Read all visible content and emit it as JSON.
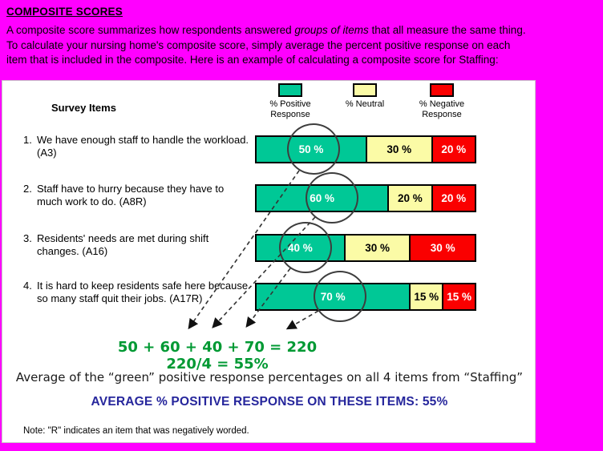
{
  "page": {
    "background_color": "#FF00FF"
  },
  "header": {
    "title": "COMPOSITE SCORES",
    "line1_pre": "A composite score summarizes how respondents answered ",
    "line1_italic": "groups of items",
    "line1_post": " that all measure the same thing.",
    "line2": "To calculate your nursing home's composite score, simply average the percent positive response on each",
    "line3": "item that is included in the composite. Here is an example of calculating a composite score for Staffing:"
  },
  "panel": {
    "survey_items_label": "Survey Items",
    "legend": {
      "items": [
        {
          "name": "positive",
          "color": "#00C896",
          "label1": "% Positive",
          "label2": "Response"
        },
        {
          "name": "neutral",
          "color": "#FBFBA6",
          "label1": "% Neutral",
          "label2": ""
        },
        {
          "name": "negative",
          "color": "#FA0000",
          "label1": "% Negative",
          "label2": "Response"
        }
      ]
    },
    "items": [
      {
        "number": "1.",
        "text": "We have enough staff to handle the workload. (A3)"
      },
      {
        "number": "2.",
        "text": "Staff have to hurry because they have to much work to do. (A8R)"
      },
      {
        "number": "3.",
        "text": "Residents' needs are met during shift changes. (A16)"
      },
      {
        "number": "4.",
        "text": "It is hard to keep residents safe here because so many staff quit their jobs. (A17R)"
      }
    ],
    "calc": {
      "line1": "50 + 60 + 40 + 70 = 220",
      "line2": "220/4 = 55%",
      "color": "#009933"
    },
    "average_note": "Average of the “green” positive response percentages on all 4 items from “Staffing”",
    "average_line": "AVERAGE % POSITIVE RESPONSE ON THESE ITEMS: 55%",
    "average_line_color": "#26269C",
    "footnote": "Note: \"R\" indicates an item that was negatively worded."
  },
  "chart_data": {
    "type": "bar",
    "stacked": true,
    "orientation": "horizontal",
    "unit": "percent",
    "xlim": [
      0,
      100
    ],
    "legend_position": "top",
    "categories": [
      "We have enough staff to handle the workload. (A3)",
      "Staff have to hurry because they have to much work to do. (A8R)",
      "Residents' needs are met during shift changes. (A16)",
      "It is hard to keep residents safe here because so many staff quit their jobs. (A17R)"
    ],
    "series": [
      {
        "name": "% Positive Response",
        "color": "#00C896",
        "values": [
          50,
          60,
          40,
          70
        ]
      },
      {
        "name": "% Neutral",
        "color": "#FBFBA6",
        "values": [
          30,
          20,
          30,
          15
        ]
      },
      {
        "name": "% Negative Response",
        "color": "#FA0000",
        "values": [
          20,
          20,
          30,
          15
        ]
      }
    ],
    "display_labels": [
      [
        "50 %",
        "30 %",
        "20 %"
      ],
      [
        "60 %",
        "20 %",
        "20 %"
      ],
      [
        "40 %",
        "30 %",
        "30 %"
      ],
      [
        "70 %",
        "15 %",
        "15 %"
      ]
    ],
    "annotations": {
      "sum_line": "50 + 60 + 40 + 70 = 220",
      "average_line": "220/4 = 55%"
    }
  }
}
